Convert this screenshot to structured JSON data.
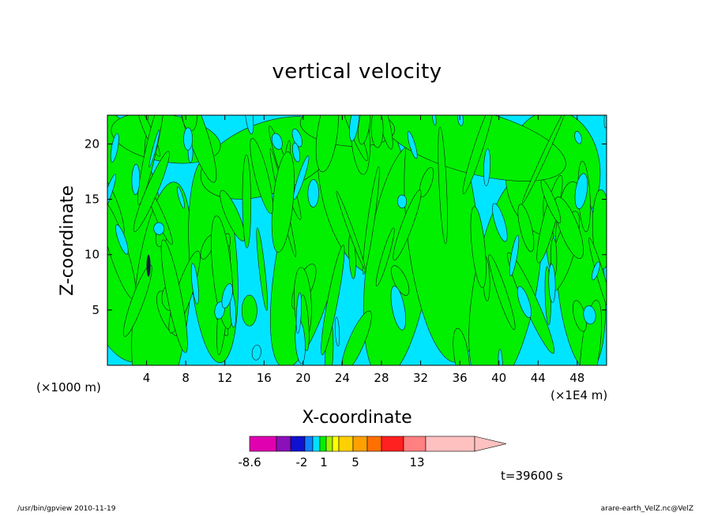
{
  "chart_data": {
    "type": "heatmap",
    "title": "vertical velocity",
    "xlabel": "X-coordinate",
    "ylabel": "Z-coordinate",
    "x_ticks": [
      "4",
      "8",
      "12",
      "16",
      "20",
      "24",
      "28",
      "32",
      "36",
      "40",
      "44",
      "48"
    ],
    "x_tick_values": [
      4,
      8,
      12,
      16,
      20,
      24,
      28,
      32,
      36,
      40,
      44,
      48
    ],
    "y_ticks": [
      "5",
      "10",
      "15",
      "20"
    ],
    "y_tick_values": [
      5,
      10,
      15,
      20
    ],
    "xlim": [
      0,
      51
    ],
    "ylim": [
      0,
      22.6
    ],
    "x_unit_left": "(×1000 m)",
    "x_unit_right": "(×1E4 m)",
    "colorbar": {
      "colors": [
        "#e000b0",
        "#8a10b8",
        "#1010d0",
        "#1080ff",
        "#00e0ff",
        "#00f000",
        "#a0f000",
        "#ffff00",
        "#ffd000",
        "#ffa000",
        "#ff7000",
        "#ff2020",
        "#ff8080",
        "#ffc0c0"
      ],
      "labels": [
        "-8.6",
        "-2",
        "1",
        "5",
        "13"
      ],
      "dominant_colors": [
        "#00e5ff",
        "#00f000"
      ]
    },
    "time_label": "t=39600 s"
  },
  "footer": {
    "left": "/usr/bin/gpview   2010-11-19",
    "right": "arare-earth_VelZ.nc@VelZ"
  }
}
